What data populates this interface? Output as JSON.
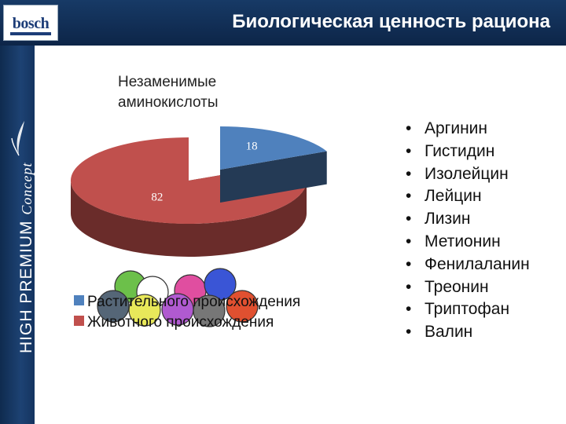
{
  "header": {
    "title": "Биологическая ценность рациона",
    "logo_text": "bosch"
  },
  "sidebar": {
    "brand_main": "HIGH PREMIUM",
    "brand_script": "Concept"
  },
  "chart_data": {
    "type": "pie",
    "title": "Незаменимые аминокислоты",
    "title_lines": [
      "Незаменимые",
      "аминокислоты"
    ],
    "labels": [
      "Растительного происхождения",
      "Животного происхождения"
    ],
    "values": [
      18,
      82
    ],
    "colors": [
      "#4f81bd",
      "#c0504d"
    ],
    "data_labels": [
      "18",
      "82"
    ],
    "legend_position": "bottom-left",
    "three_d": true,
    "exploded": true
  },
  "amino_acids": [
    "Аргинин",
    "Гистидин",
    "Изолейцин",
    "Лейцин",
    "Лизин",
    "Метионин",
    "Фенилаланин",
    "Треонин",
    "Триптофан",
    "Валин"
  ],
  "decor": {
    "ball_colors": [
      "#6cc04a",
      "#ffffff",
      "#e04ea0",
      "#3a55d6",
      "#556677",
      "#e8e85a",
      "#b05ad0",
      "#777777",
      "#e05030"
    ]
  }
}
